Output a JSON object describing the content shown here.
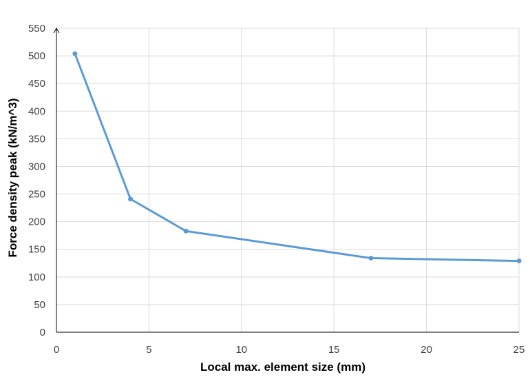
{
  "chart_data": {
    "type": "line",
    "title": "",
    "xlabel": "Local max. element size (mm)",
    "ylabel": "Force density peak (kN/m^3)",
    "xlim": [
      0,
      25
    ],
    "ylim": [
      0,
      550
    ],
    "xticks": [
      0,
      5,
      10,
      15,
      20,
      25
    ],
    "yticks": [
      0,
      50,
      100,
      150,
      200,
      250,
      300,
      350,
      400,
      450,
      500,
      550
    ],
    "grid": true,
    "legend": "none",
    "series": [
      {
        "color": "#5b9bd5",
        "x": [
          1,
          4,
          7,
          17,
          25
        ],
        "y": [
          504,
          241,
          183,
          134,
          129
        ]
      }
    ]
  },
  "colors": {
    "grid": "#d9d9d9",
    "axis": "#000000",
    "line": "#5b9bd5"
  }
}
